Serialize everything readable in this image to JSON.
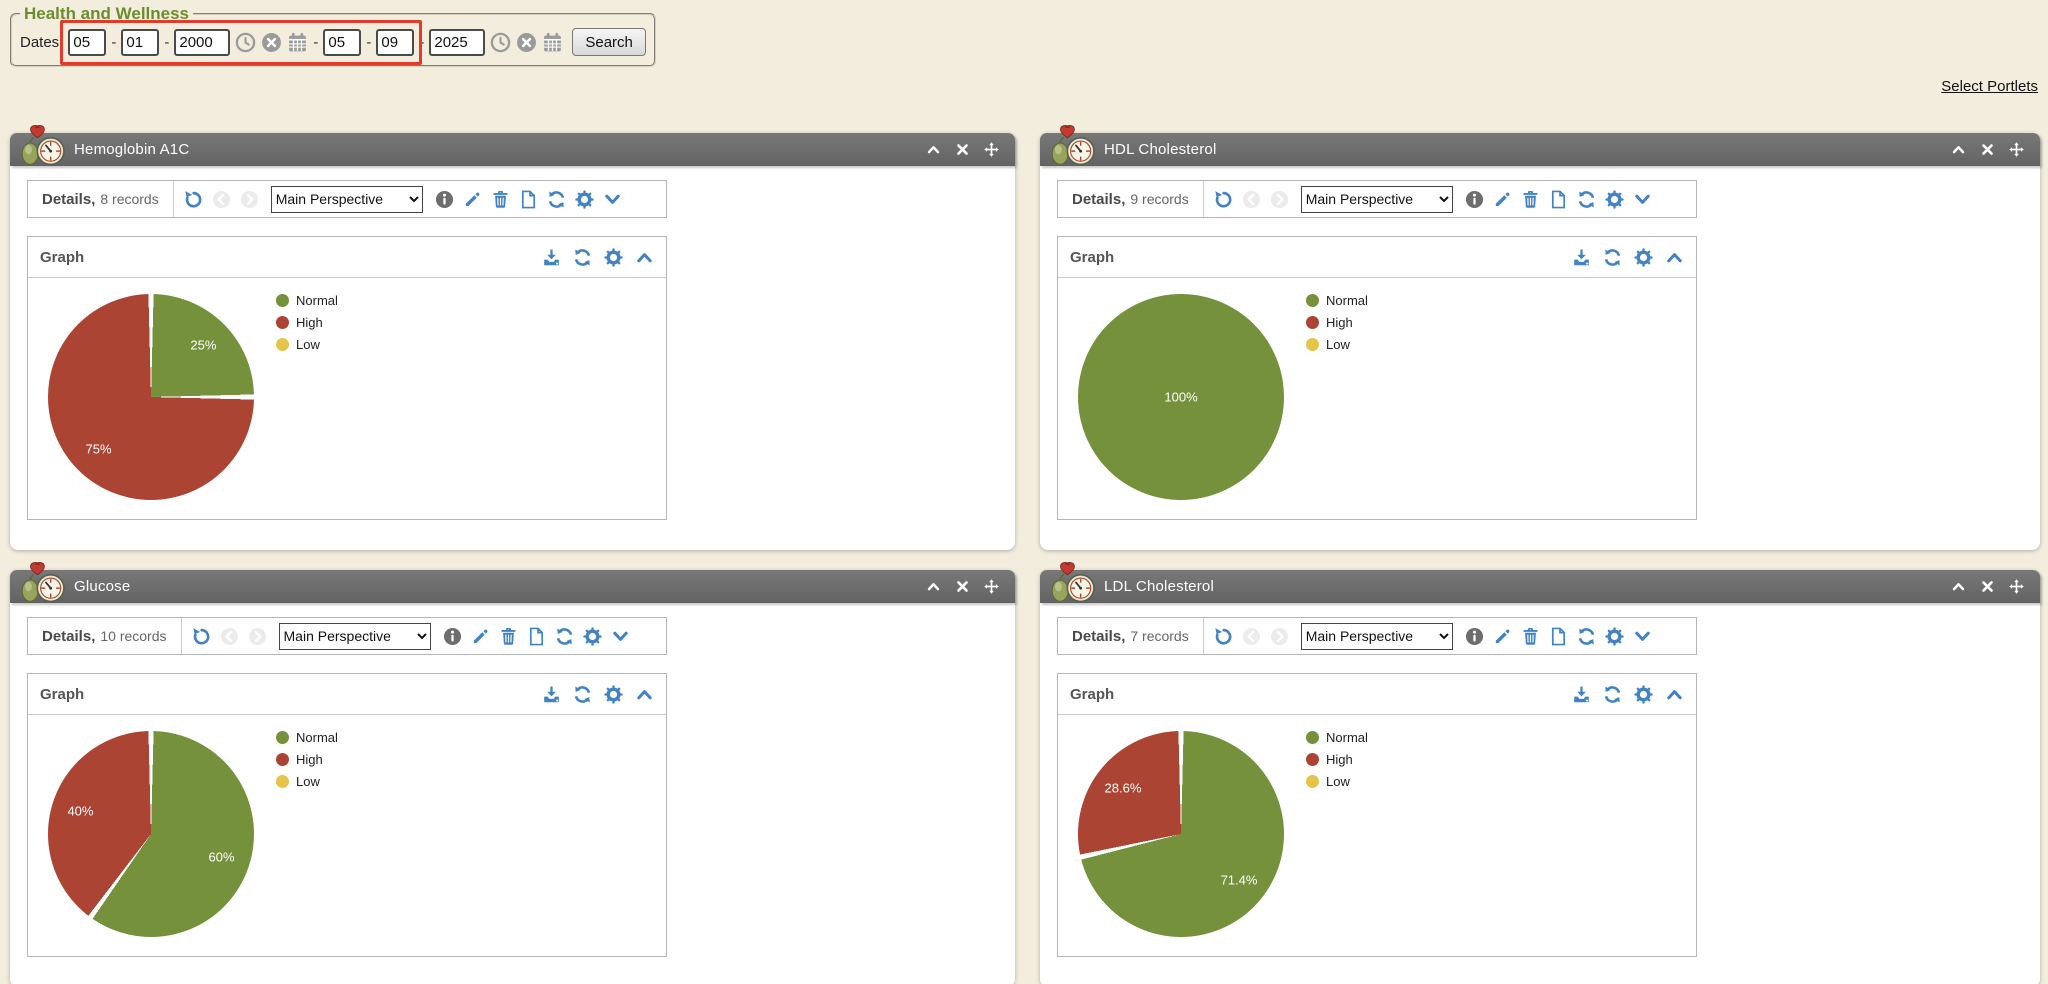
{
  "header": {
    "legend": "Health and Wellness",
    "dates_label": "Dates:",
    "from_date": {
      "month": "05",
      "day": "01",
      "year": "2000"
    },
    "to_date": {
      "month": "05",
      "day": "09",
      "year": "2025"
    },
    "separator": "-",
    "search_label": "Search"
  },
  "links": {
    "select_portlets": "Select Portlets"
  },
  "toolbar": {
    "details_label": "Details,",
    "perspective_option": "Main Perspective",
    "graph_label": "Graph"
  },
  "colors": {
    "page_bg": "#f3edde",
    "title_bar_gray": "#6b6b6b",
    "accent_blue": "#4383c4",
    "heading_green": "#6b8d2f",
    "annotation": "#e23b2e",
    "normal_green": "#76913C",
    "high_red": "#AC4434",
    "low_yellow": "#E5C44A"
  },
  "icons": {
    "health-meter-icon": "blood-pressure-gauge-with-heart",
    "collapse-portlet-icon": "chevron-up",
    "close-portlet-icon": "x-cross",
    "move-portlet-icon": "four-direction-arrows",
    "undo-icon": "counterclockwise-arrow",
    "prev-icon": "chevron-left-in-circle (disabled)",
    "next-icon": "chevron-right-in-circle (disabled)",
    "info-icon": "i-in-gray-circle",
    "edit-icon": "pencil",
    "delete-icon": "trash-can",
    "report-icon": "document-page",
    "refresh-icon": "circular-arrows",
    "settings-icon": "gear",
    "expand-icon": "chevron-down",
    "export-icon": "download-into-tray",
    "clock-icon": "clock-in-circle",
    "clear-date-icon": "x-in-solid-circle",
    "calendar-icon": "calendar-grid"
  },
  "legend": [
    {
      "label": "Normal",
      "color": "#76913C"
    },
    {
      "label": "High",
      "color": "#AC4434"
    },
    {
      "label": "Low",
      "color": "#E5C44A"
    }
  ],
  "portlets": [
    {
      "title": "Hemoglobin A1C",
      "records": "8 records"
    },
    {
      "title": "HDL Cholesterol",
      "records": "9 records"
    },
    {
      "title": "Glucose",
      "records": "10 records"
    },
    {
      "title": "LDL Cholesterol",
      "records": "7 records"
    }
  ],
  "chart_data": [
    {
      "type": "pie",
      "title": "Hemoglobin A1C",
      "labels": [
        "Normal",
        "High",
        "Low"
      ],
      "values": [
        25,
        75,
        0
      ],
      "value_labels": [
        "25%",
        "75%",
        ""
      ],
      "colors": [
        "#76913C",
        "#AC4434",
        "#E5C44A"
      ],
      "legend_position": "right",
      "start_angle_deg": 0,
      "direction": "clockwise"
    },
    {
      "type": "pie",
      "title": "HDL Cholesterol",
      "labels": [
        "Normal",
        "High",
        "Low"
      ],
      "values": [
        100,
        0,
        0
      ],
      "value_labels": [
        "100%",
        "",
        ""
      ],
      "colors": [
        "#76913C",
        "#AC4434",
        "#E5C44A"
      ],
      "legend_position": "right",
      "start_angle_deg": 0,
      "direction": "clockwise"
    },
    {
      "type": "pie",
      "title": "Glucose",
      "labels": [
        "Normal",
        "High",
        "Low"
      ],
      "values": [
        60,
        40,
        0
      ],
      "value_labels": [
        "60%",
        "40%",
        ""
      ],
      "colors": [
        "#76913C",
        "#AC4434",
        "#E5C44A"
      ],
      "legend_position": "right",
      "start_angle_deg": 0,
      "direction": "clockwise"
    },
    {
      "type": "pie",
      "title": "LDL Cholesterol",
      "labels": [
        "Normal",
        "High",
        "Low"
      ],
      "values": [
        71.4,
        28.6,
        0
      ],
      "value_labels": [
        "71.4%",
        "28.6%",
        ""
      ],
      "colors": [
        "#76913C",
        "#AC4434",
        "#E5C44A"
      ],
      "legend_position": "right",
      "start_angle_deg": 0,
      "direction": "clockwise"
    }
  ]
}
